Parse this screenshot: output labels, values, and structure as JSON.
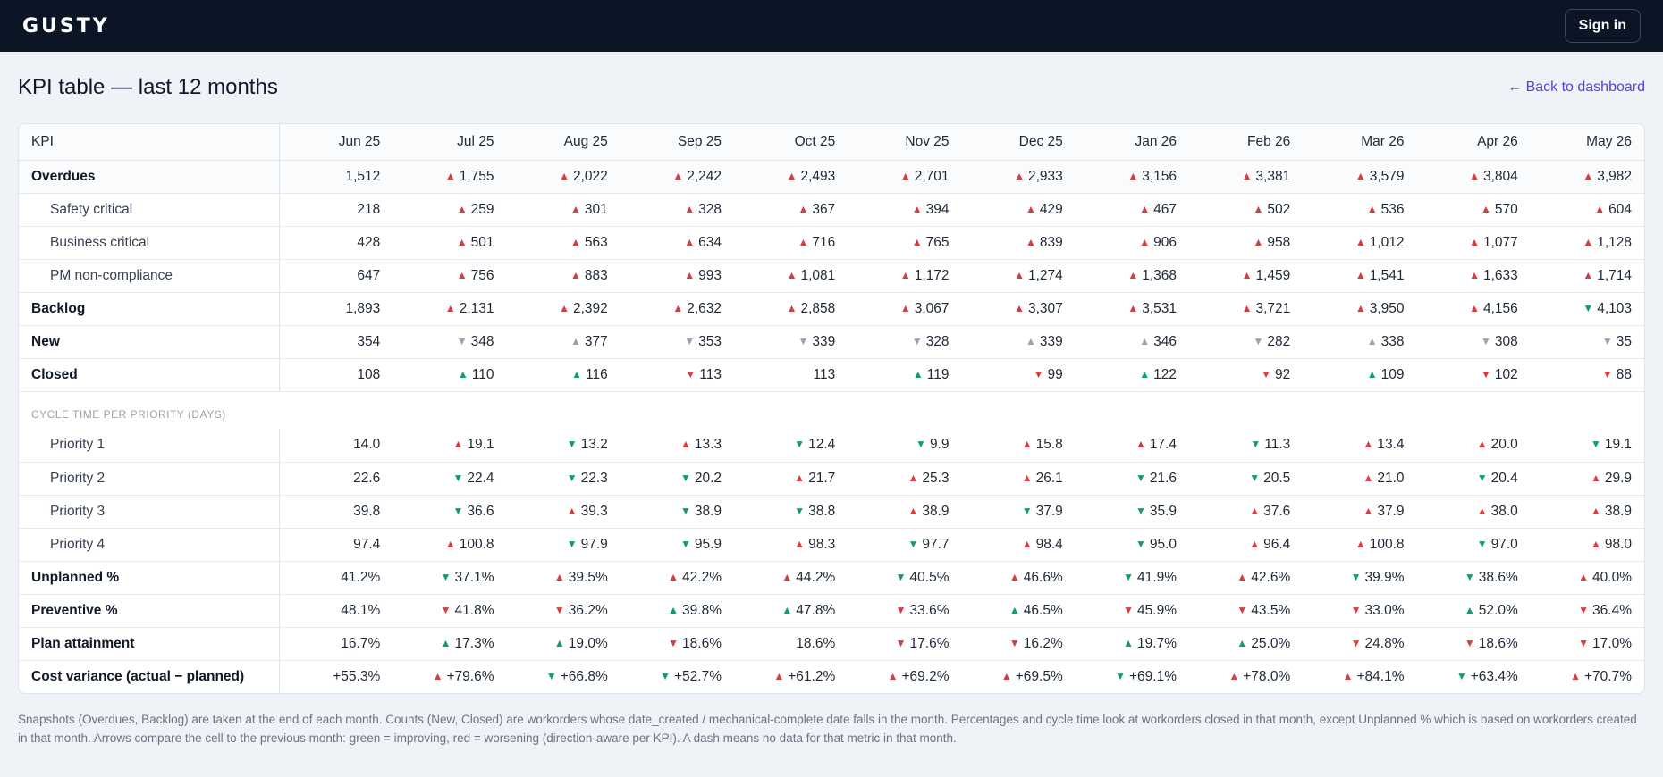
{
  "header": {
    "logo": "GUSTY",
    "signin_label": "Sign in"
  },
  "page": {
    "title": "KPI table — last 12 months",
    "back_link": "← Back to dashboard"
  },
  "table": {
    "kpi_header": "KPI",
    "months": [
      "Jun 25",
      "Jul 25",
      "Aug 25",
      "Sep 25",
      "Oct 25",
      "Nov 25",
      "Dec 25",
      "Jan 26",
      "Feb 26",
      "Mar 26",
      "Apr 26",
      "May 26"
    ],
    "rows": [
      {
        "label": "Overdues",
        "kind": "main",
        "cells": [
          {
            "v": "1,512",
            "a": ""
          },
          {
            "v": "1,755",
            "a": "up-bad"
          },
          {
            "v": "2,022",
            "a": "up-bad"
          },
          {
            "v": "2,242",
            "a": "up-bad"
          },
          {
            "v": "2,493",
            "a": "up-bad"
          },
          {
            "v": "2,701",
            "a": "up-bad"
          },
          {
            "v": "2,933",
            "a": "up-bad"
          },
          {
            "v": "3,156",
            "a": "up-bad"
          },
          {
            "v": "3,381",
            "a": "up-bad"
          },
          {
            "v": "3,579",
            "a": "up-bad"
          },
          {
            "v": "3,804",
            "a": "up-bad"
          },
          {
            "v": "3,982",
            "a": "up-bad"
          }
        ]
      },
      {
        "label": "Safety critical",
        "kind": "sub",
        "cells": [
          {
            "v": "218",
            "a": ""
          },
          {
            "v": "259",
            "a": "up-bad"
          },
          {
            "v": "301",
            "a": "up-bad"
          },
          {
            "v": "328",
            "a": "up-bad"
          },
          {
            "v": "367",
            "a": "up-bad"
          },
          {
            "v": "394",
            "a": "up-bad"
          },
          {
            "v": "429",
            "a": "up-bad"
          },
          {
            "v": "467",
            "a": "up-bad"
          },
          {
            "v": "502",
            "a": "up-bad"
          },
          {
            "v": "536",
            "a": "up-bad"
          },
          {
            "v": "570",
            "a": "up-bad"
          },
          {
            "v": "604",
            "a": "up-bad"
          }
        ]
      },
      {
        "label": "Business critical",
        "kind": "sub",
        "cells": [
          {
            "v": "428",
            "a": ""
          },
          {
            "v": "501",
            "a": "up-bad"
          },
          {
            "v": "563",
            "a": "up-bad"
          },
          {
            "v": "634",
            "a": "up-bad"
          },
          {
            "v": "716",
            "a": "up-bad"
          },
          {
            "v": "765",
            "a": "up-bad"
          },
          {
            "v": "839",
            "a": "up-bad"
          },
          {
            "v": "906",
            "a": "up-bad"
          },
          {
            "v": "958",
            "a": "up-bad"
          },
          {
            "v": "1,012",
            "a": "up-bad"
          },
          {
            "v": "1,077",
            "a": "up-bad"
          },
          {
            "v": "1,128",
            "a": "up-bad"
          }
        ]
      },
      {
        "label": "PM non-compliance",
        "kind": "sub",
        "cells": [
          {
            "v": "647",
            "a": ""
          },
          {
            "v": "756",
            "a": "up-bad"
          },
          {
            "v": "883",
            "a": "up-bad"
          },
          {
            "v": "993",
            "a": "up-bad"
          },
          {
            "v": "1,081",
            "a": "up-bad"
          },
          {
            "v": "1,172",
            "a": "up-bad"
          },
          {
            "v": "1,274",
            "a": "up-bad"
          },
          {
            "v": "1,368",
            "a": "up-bad"
          },
          {
            "v": "1,459",
            "a": "up-bad"
          },
          {
            "v": "1,541",
            "a": "up-bad"
          },
          {
            "v": "1,633",
            "a": "up-bad"
          },
          {
            "v": "1,714",
            "a": "up-bad"
          }
        ]
      },
      {
        "label": "Backlog",
        "kind": "main",
        "cells": [
          {
            "v": "1,893",
            "a": ""
          },
          {
            "v": "2,131",
            "a": "up-bad"
          },
          {
            "v": "2,392",
            "a": "up-bad"
          },
          {
            "v": "2,632",
            "a": "up-bad"
          },
          {
            "v": "2,858",
            "a": "up-bad"
          },
          {
            "v": "3,067",
            "a": "up-bad"
          },
          {
            "v": "3,307",
            "a": "up-bad"
          },
          {
            "v": "3,531",
            "a": "up-bad"
          },
          {
            "v": "3,721",
            "a": "up-bad"
          },
          {
            "v": "3,950",
            "a": "up-bad"
          },
          {
            "v": "4,156",
            "a": "up-bad"
          },
          {
            "v": "4,103",
            "a": "down-good"
          }
        ]
      },
      {
        "label": "New",
        "kind": "main",
        "cells": [
          {
            "v": "354",
            "a": ""
          },
          {
            "v": "348",
            "a": "down-neutral"
          },
          {
            "v": "377",
            "a": "up-neutral"
          },
          {
            "v": "353",
            "a": "down-neutral"
          },
          {
            "v": "339",
            "a": "down-neutral"
          },
          {
            "v": "328",
            "a": "down-neutral"
          },
          {
            "v": "339",
            "a": "up-neutral"
          },
          {
            "v": "346",
            "a": "up-neutral"
          },
          {
            "v": "282",
            "a": "down-neutral"
          },
          {
            "v": "338",
            "a": "up-neutral"
          },
          {
            "v": "308",
            "a": "down-neutral"
          },
          {
            "v": "35",
            "a": "down-neutral"
          }
        ]
      },
      {
        "label": "Closed",
        "kind": "main",
        "cells": [
          {
            "v": "108",
            "a": ""
          },
          {
            "v": "110",
            "a": "up-good"
          },
          {
            "v": "116",
            "a": "up-good"
          },
          {
            "v": "113",
            "a": "down-bad"
          },
          {
            "v": "113",
            "a": ""
          },
          {
            "v": "119",
            "a": "up-good"
          },
          {
            "v": "99",
            "a": "down-bad"
          },
          {
            "v": "122",
            "a": "up-good"
          },
          {
            "v": "92",
            "a": "down-bad"
          },
          {
            "v": "109",
            "a": "up-good"
          },
          {
            "v": "102",
            "a": "down-bad"
          },
          {
            "v": "88",
            "a": "down-bad"
          }
        ]
      },
      {
        "label": "CYCLE TIME PER PRIORITY (DAYS)",
        "kind": "section",
        "cells": []
      },
      {
        "label": "Priority 1",
        "kind": "sub",
        "cells": [
          {
            "v": "14.0",
            "a": ""
          },
          {
            "v": "19.1",
            "a": "up-bad"
          },
          {
            "v": "13.2",
            "a": "down-good"
          },
          {
            "v": "13.3",
            "a": "up-bad"
          },
          {
            "v": "12.4",
            "a": "down-good"
          },
          {
            "v": "9.9",
            "a": "down-good"
          },
          {
            "v": "15.8",
            "a": "up-bad"
          },
          {
            "v": "17.4",
            "a": "up-bad"
          },
          {
            "v": "11.3",
            "a": "down-good"
          },
          {
            "v": "13.4",
            "a": "up-bad"
          },
          {
            "v": "20.0",
            "a": "up-bad"
          },
          {
            "v": "19.1",
            "a": "down-good"
          }
        ]
      },
      {
        "label": "Priority 2",
        "kind": "sub",
        "cells": [
          {
            "v": "22.6",
            "a": ""
          },
          {
            "v": "22.4",
            "a": "down-good"
          },
          {
            "v": "22.3",
            "a": "down-good"
          },
          {
            "v": "20.2",
            "a": "down-good"
          },
          {
            "v": "21.7",
            "a": "up-bad"
          },
          {
            "v": "25.3",
            "a": "up-bad"
          },
          {
            "v": "26.1",
            "a": "up-bad"
          },
          {
            "v": "21.6",
            "a": "down-good"
          },
          {
            "v": "20.5",
            "a": "down-good"
          },
          {
            "v": "21.0",
            "a": "up-bad"
          },
          {
            "v": "20.4",
            "a": "down-good"
          },
          {
            "v": "29.9",
            "a": "up-bad"
          }
        ]
      },
      {
        "label": "Priority 3",
        "kind": "sub",
        "cells": [
          {
            "v": "39.8",
            "a": ""
          },
          {
            "v": "36.6",
            "a": "down-good"
          },
          {
            "v": "39.3",
            "a": "up-bad"
          },
          {
            "v": "38.9",
            "a": "down-good"
          },
          {
            "v": "38.8",
            "a": "down-good"
          },
          {
            "v": "38.9",
            "a": "up-bad"
          },
          {
            "v": "37.9",
            "a": "down-good"
          },
          {
            "v": "35.9",
            "a": "down-good"
          },
          {
            "v": "37.6",
            "a": "up-bad"
          },
          {
            "v": "37.9",
            "a": "up-bad"
          },
          {
            "v": "38.0",
            "a": "up-bad"
          },
          {
            "v": "38.9",
            "a": "up-bad"
          }
        ]
      },
      {
        "label": "Priority 4",
        "kind": "sub",
        "cells": [
          {
            "v": "97.4",
            "a": ""
          },
          {
            "v": "100.8",
            "a": "up-bad"
          },
          {
            "v": "97.9",
            "a": "down-good"
          },
          {
            "v": "95.9",
            "a": "down-good"
          },
          {
            "v": "98.3",
            "a": "up-bad"
          },
          {
            "v": "97.7",
            "a": "down-good"
          },
          {
            "v": "98.4",
            "a": "up-bad"
          },
          {
            "v": "95.0",
            "a": "down-good"
          },
          {
            "v": "96.4",
            "a": "up-bad"
          },
          {
            "v": "100.8",
            "a": "up-bad"
          },
          {
            "v": "97.0",
            "a": "down-good"
          },
          {
            "v": "98.0",
            "a": "up-bad"
          }
        ]
      },
      {
        "label": "Unplanned %",
        "kind": "main",
        "cells": [
          {
            "v": "41.2%",
            "a": ""
          },
          {
            "v": "37.1%",
            "a": "down-good"
          },
          {
            "v": "39.5%",
            "a": "up-bad"
          },
          {
            "v": "42.2%",
            "a": "up-bad"
          },
          {
            "v": "44.2%",
            "a": "up-bad"
          },
          {
            "v": "40.5%",
            "a": "down-good"
          },
          {
            "v": "46.6%",
            "a": "up-bad"
          },
          {
            "v": "41.9%",
            "a": "down-good"
          },
          {
            "v": "42.6%",
            "a": "up-bad"
          },
          {
            "v": "39.9%",
            "a": "down-good"
          },
          {
            "v": "38.6%",
            "a": "down-good"
          },
          {
            "v": "40.0%",
            "a": "up-bad"
          }
        ]
      },
      {
        "label": "Preventive %",
        "kind": "main",
        "cells": [
          {
            "v": "48.1%",
            "a": ""
          },
          {
            "v": "41.8%",
            "a": "down-bad"
          },
          {
            "v": "36.2%",
            "a": "down-bad"
          },
          {
            "v": "39.8%",
            "a": "up-good"
          },
          {
            "v": "47.8%",
            "a": "up-good"
          },
          {
            "v": "33.6%",
            "a": "down-bad"
          },
          {
            "v": "46.5%",
            "a": "up-good"
          },
          {
            "v": "45.9%",
            "a": "down-bad"
          },
          {
            "v": "43.5%",
            "a": "down-bad"
          },
          {
            "v": "33.0%",
            "a": "down-bad"
          },
          {
            "v": "52.0%",
            "a": "up-good"
          },
          {
            "v": "36.4%",
            "a": "down-bad"
          }
        ]
      },
      {
        "label": "Plan attainment",
        "kind": "main",
        "cells": [
          {
            "v": "16.7%",
            "a": ""
          },
          {
            "v": "17.3%",
            "a": "up-good"
          },
          {
            "v": "19.0%",
            "a": "up-good"
          },
          {
            "v": "18.6%",
            "a": "down-bad"
          },
          {
            "v": "18.6%",
            "a": ""
          },
          {
            "v": "17.6%",
            "a": "down-bad"
          },
          {
            "v": "16.2%",
            "a": "down-bad"
          },
          {
            "v": "19.7%",
            "a": "up-good"
          },
          {
            "v": "25.0%",
            "a": "up-good"
          },
          {
            "v": "24.8%",
            "a": "down-bad"
          },
          {
            "v": "18.6%",
            "a": "down-bad"
          },
          {
            "v": "17.0%",
            "a": "down-bad"
          }
        ]
      },
      {
        "label": "Cost variance (actual − planned)",
        "kind": "main",
        "cells": [
          {
            "v": "+55.3%",
            "a": ""
          },
          {
            "v": "+79.6%",
            "a": "up-bad"
          },
          {
            "v": "+66.8%",
            "a": "down-good"
          },
          {
            "v": "+52.7%",
            "a": "down-good"
          },
          {
            "v": "+61.2%",
            "a": "up-bad"
          },
          {
            "v": "+69.2%",
            "a": "up-bad"
          },
          {
            "v": "+69.5%",
            "a": "up-bad"
          },
          {
            "v": "+69.1%",
            "a": "down-good"
          },
          {
            "v": "+78.0%",
            "a": "up-bad"
          },
          {
            "v": "+84.1%",
            "a": "up-bad"
          },
          {
            "v": "+63.4%",
            "a": "down-good"
          },
          {
            "v": "+70.7%",
            "a": "up-bad"
          }
        ]
      }
    ]
  },
  "footnote": "Snapshots (Overdues, Backlog) are taken at the end of each month. Counts (New, Closed) are workorders whose date_created / mechanical-complete date falls in the month. Percentages and cycle time look at workorders closed in that month, except Unplanned % which is based on workorders created in that month. Arrows compare the cell to the previous month: green = improving, red = worsening (direction-aware per KPI). A dash means no data for that metric in that month.",
  "colors": {
    "bad": "#dc3b3b",
    "good": "#0f9f6e",
    "neutral": "#94a3b8",
    "topbar": "#0c1526",
    "link": "#5b3fd6"
  }
}
